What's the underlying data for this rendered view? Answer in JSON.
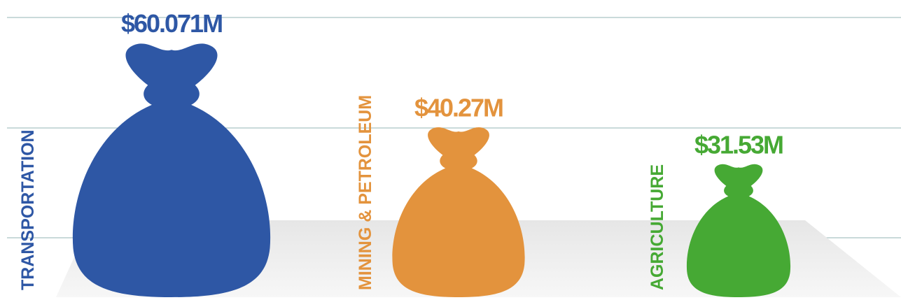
{
  "chart_data": {
    "type": "bag",
    "categories": [
      "TRANSPORTATION",
      "MINING & PETROLEUM",
      "AGRICULTURE"
    ],
    "values": [
      60.071,
      40.27,
      31.53
    ],
    "value_labels": [
      "$60.071M",
      "$40.27M",
      "$31.53M"
    ],
    "colors": [
      "#2e57a5",
      "#e3933d",
      "#46a934"
    ]
  }
}
